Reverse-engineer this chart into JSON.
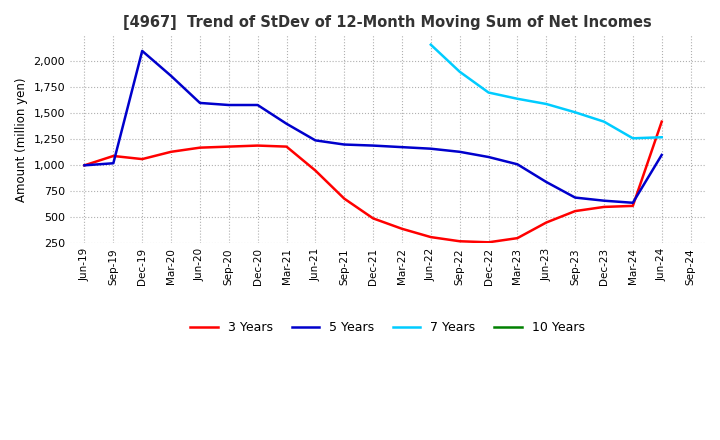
{
  "title": "[4967]  Trend of StDev of 12-Month Moving Sum of Net Incomes",
  "ylabel": "Amount (million yen)",
  "ylim": [
    250,
    2250
  ],
  "yticks": [
    250,
    500,
    750,
    1000,
    1250,
    1500,
    1750,
    2000
  ],
  "line_colors": {
    "3yr": "#ff0000",
    "5yr": "#0000cc",
    "7yr": "#00ccff",
    "10yr": "#008000"
  },
  "legend_labels": [
    "3 Years",
    "5 Years",
    "7 Years",
    "10 Years"
  ],
  "x_labels": [
    "Jun-19",
    "Sep-19",
    "Dec-19",
    "Mar-20",
    "Jun-20",
    "Sep-20",
    "Dec-20",
    "Mar-21",
    "Jun-21",
    "Sep-21",
    "Dec-21",
    "Mar-22",
    "Jun-22",
    "Sep-22",
    "Dec-22",
    "Mar-23",
    "Jun-23",
    "Sep-23",
    "Dec-23",
    "Mar-24",
    "Jun-24",
    "Sep-24"
  ],
  "data_3yr": [
    1000,
    1090,
    1060,
    1130,
    1170,
    1180,
    1190,
    1180,
    950,
    680,
    490,
    390,
    310,
    270,
    260,
    300,
    450,
    560,
    600,
    610,
    1420,
    null
  ],
  "data_5yr": [
    1000,
    1020,
    2100,
    1860,
    1600,
    1580,
    1580,
    1400,
    1240,
    1200,
    1190,
    1175,
    1160,
    1130,
    1080,
    1010,
    840,
    690,
    660,
    640,
    1100,
    null
  ],
  "data_7yr": [
    null,
    null,
    null,
    null,
    null,
    null,
    null,
    null,
    null,
    null,
    null,
    null,
    2160,
    1900,
    1700,
    1640,
    1590,
    1510,
    1420,
    1260,
    1270,
    null
  ],
  "data_10yr": [
    null,
    null,
    null,
    null,
    null,
    null,
    null,
    null,
    null,
    null,
    null,
    null,
    null,
    null,
    null,
    null,
    null,
    null,
    null,
    null,
    null,
    null
  ],
  "background_color": "#ffffff",
  "grid_color": "#b0b0b0"
}
